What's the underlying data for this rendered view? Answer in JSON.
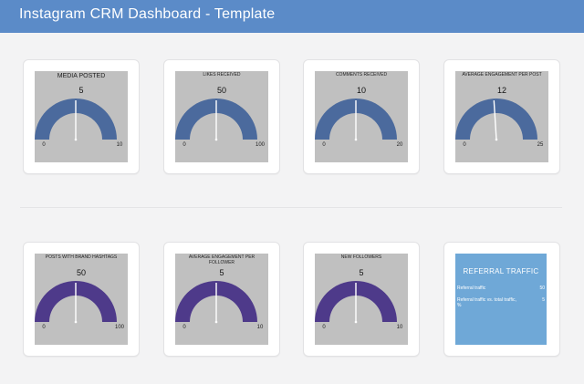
{
  "header": {
    "title": "Instagram CRM Dashboard - Template"
  },
  "colors": {
    "header": "#5b8bc8",
    "gauge_blue": "#4b6a9d",
    "gauge_purple": "#4e3a8a",
    "panel": "#c0c0c0",
    "needle": "#ffffff",
    "referral_bg": "#6fa8d7"
  },
  "chart_data": [
    {
      "type": "gauge",
      "title": "MEDIA POSTED",
      "value": 5,
      "min": 0,
      "max": 10,
      "color": "#4b6a9d"
    },
    {
      "type": "gauge",
      "title": "LIKES RECEIVED",
      "value": 50,
      "min": 0,
      "max": 100,
      "color": "#4b6a9d"
    },
    {
      "type": "gauge",
      "title": "COMMENTS RECEIVED",
      "value": 10,
      "min": 0,
      "max": 20,
      "color": "#4b6a9d"
    },
    {
      "type": "gauge",
      "title": "AVERAGE ENGAGEMENT PER POST",
      "value": 12,
      "min": 0,
      "max": 25,
      "color": "#4b6a9d"
    },
    {
      "type": "gauge",
      "title": "POSTS WITH BRAND HASHTAGS",
      "value": 50,
      "min": 0,
      "max": 100,
      "color": "#4e3a8a"
    },
    {
      "type": "gauge",
      "title": "AVERAGE ENGAGEMENT PER FOLLOWER",
      "value": 5,
      "min": 0,
      "max": 10,
      "color": "#4e3a8a"
    },
    {
      "type": "gauge",
      "title": "NEW FOLLOWERS",
      "value": 5,
      "min": 0,
      "max": 10,
      "color": "#4e3a8a"
    }
  ],
  "referral": {
    "title": "REFERRAL TRAFFIC",
    "rows": [
      {
        "label": "Referral traffic",
        "value": "50"
      },
      {
        "label": "Referral traffic vs. total traffic, %",
        "value": "5"
      }
    ]
  }
}
